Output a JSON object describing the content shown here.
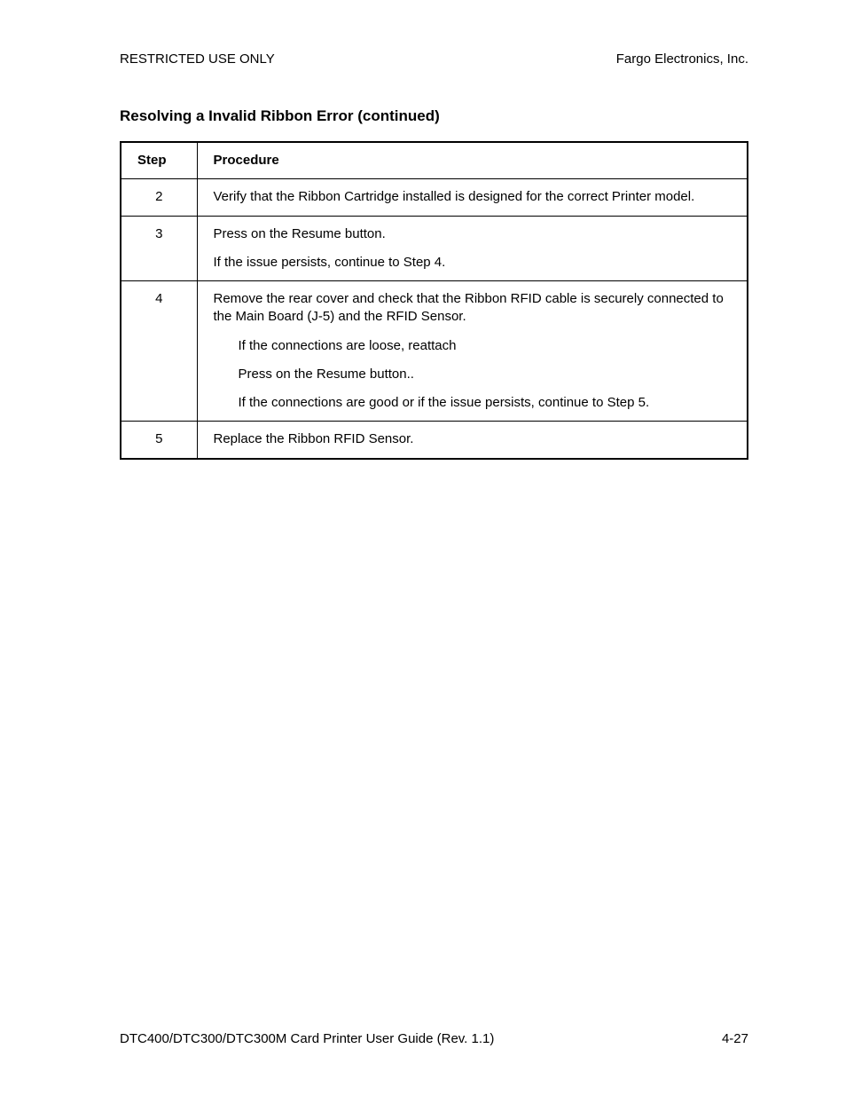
{
  "header": {
    "left": "RESTRICTED USE ONLY",
    "right": "Fargo Electronics, Inc."
  },
  "section_title": "Resolving a Invalid Ribbon Error (continued)",
  "table": {
    "columns": [
      "Step",
      "Procedure"
    ],
    "rows": [
      {
        "step": "2",
        "paras": [
          {
            "text": "Verify that the Ribbon Cartridge installed is designed for the correct Printer model.",
            "indent": false
          }
        ]
      },
      {
        "step": "3",
        "paras": [
          {
            "text": "Press on the Resume button.",
            "indent": false
          },
          {
            "text": "If the issue persists, continue to Step 4.",
            "indent": false
          }
        ]
      },
      {
        "step": "4",
        "paras": [
          {
            "text": "Remove the rear cover and check that the Ribbon RFID cable is securely connected to the Main Board (J-5) and the RFID Sensor.",
            "indent": false
          },
          {
            "text": "If the connections are loose, reattach",
            "indent": true
          },
          {
            "text": "Press on the Resume button..",
            "indent": true
          },
          {
            "text": "If the connections are good or if the issue persists, continue to Step 5.",
            "indent": true
          }
        ]
      },
      {
        "step": "5",
        "paras": [
          {
            "text": "Replace the Ribbon RFID Sensor.",
            "indent": false
          }
        ]
      }
    ]
  },
  "footer": {
    "left": "DTC400/DTC300/DTC300M Card Printer User Guide (Rev. 1.1)",
    "right": "4-27"
  }
}
